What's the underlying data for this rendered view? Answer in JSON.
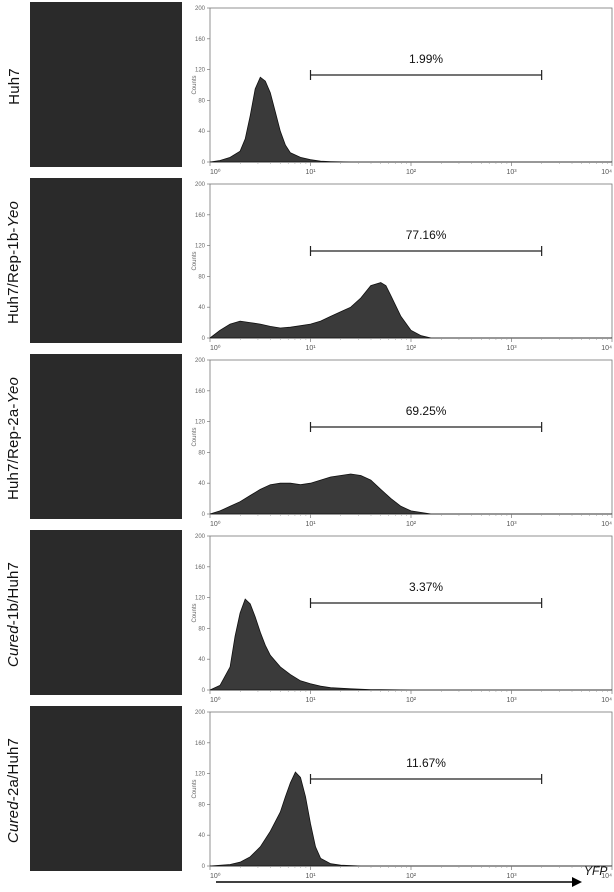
{
  "figure": {
    "x_axis_label": "YFP",
    "y_axis_label": "Counts",
    "x_tick_labels": [
      "10⁰",
      "10¹",
      "10²",
      "10³",
      "10⁴"
    ],
    "y_tick_labels": [
      "0",
      "40",
      "80",
      "120",
      "160",
      "200"
    ],
    "micro_color": "#2a2a2a",
    "fill_color": "#3a3a3a"
  },
  "chart_data": [
    {
      "type": "area",
      "label_text": "Huh7",
      "label_italic": "",
      "label_rest": "",
      "gate_percent": "1.99%",
      "gate_start_log": 1.0,
      "gate_end_log": 3.3,
      "xscale": "log",
      "xlim": [
        1,
        10000
      ],
      "ylim": [
        0,
        200
      ],
      "x_log": [
        0,
        0.1,
        0.2,
        0.3,
        0.35,
        0.4,
        0.45,
        0.5,
        0.55,
        0.6,
        0.65,
        0.7,
        0.75,
        0.8,
        0.9,
        1.0,
        1.1,
        1.2,
        1.4,
        2.0,
        4.0
      ],
      "y": [
        0,
        2,
        6,
        14,
        30,
        60,
        95,
        110,
        105,
        90,
        65,
        40,
        22,
        12,
        6,
        3,
        1,
        0.5,
        0,
        0,
        0
      ]
    },
    {
      "type": "area",
      "label_text": "Huh7/Rep-1b-",
      "label_italic": "Yeo",
      "label_rest": "",
      "gate_percent": "77.16%",
      "gate_start_log": 1.0,
      "gate_end_log": 3.3,
      "xscale": "log",
      "xlim": [
        1,
        10000
      ],
      "ylim": [
        0,
        200
      ],
      "x_log": [
        0,
        0.1,
        0.2,
        0.3,
        0.4,
        0.5,
        0.6,
        0.7,
        0.8,
        0.9,
        1.0,
        1.1,
        1.2,
        1.3,
        1.4,
        1.5,
        1.6,
        1.7,
        1.75,
        1.8,
        1.9,
        2.0,
        2.1,
        2.2,
        4.0
      ],
      "y": [
        0,
        10,
        18,
        22,
        20,
        18,
        15,
        13,
        14,
        16,
        18,
        22,
        28,
        34,
        40,
        52,
        68,
        72,
        68,
        55,
        28,
        10,
        3,
        0,
        0
      ]
    },
    {
      "type": "area",
      "label_text": "Huh7/Rep-2a-",
      "label_italic": "Yeo",
      "label_rest": "",
      "gate_percent": "69.25%",
      "gate_start_log": 1.0,
      "gate_end_log": 3.3,
      "xscale": "log",
      "xlim": [
        1,
        10000
      ],
      "ylim": [
        0,
        200
      ],
      "x_log": [
        0,
        0.1,
        0.2,
        0.3,
        0.4,
        0.5,
        0.6,
        0.7,
        0.8,
        0.9,
        1.0,
        1.1,
        1.2,
        1.3,
        1.4,
        1.5,
        1.6,
        1.7,
        1.8,
        1.9,
        2.0,
        2.2,
        4.0
      ],
      "y": [
        0,
        4,
        10,
        16,
        24,
        32,
        38,
        40,
        40,
        38,
        40,
        44,
        48,
        50,
        52,
        50,
        44,
        32,
        20,
        10,
        4,
        0,
        0
      ]
    },
    {
      "type": "area",
      "label_text": "",
      "label_italic": "Cured",
      "label_rest": "-1b/Huh7",
      "gate_percent": "3.37%",
      "gate_start_log": 1.0,
      "gate_end_log": 3.3,
      "xscale": "log",
      "xlim": [
        1,
        10000
      ],
      "ylim": [
        0,
        200
      ],
      "x_log": [
        0,
        0.1,
        0.2,
        0.25,
        0.3,
        0.35,
        0.4,
        0.45,
        0.5,
        0.55,
        0.6,
        0.7,
        0.8,
        0.9,
        1.0,
        1.1,
        1.2,
        1.4,
        1.6,
        2.0,
        4.0
      ],
      "y": [
        0,
        6,
        30,
        70,
        100,
        118,
        112,
        95,
        75,
        58,
        45,
        30,
        20,
        12,
        8,
        5,
        3,
        1.5,
        0.5,
        0,
        0
      ]
    },
    {
      "type": "area",
      "label_text": "",
      "label_italic": "Cured",
      "label_rest": "-2a/Huh7",
      "gate_percent": "11.67%",
      "gate_start_log": 1.0,
      "gate_end_log": 3.3,
      "xscale": "log",
      "xlim": [
        1,
        10000
      ],
      "ylim": [
        0,
        200
      ],
      "x_log": [
        0,
        0.2,
        0.3,
        0.4,
        0.5,
        0.6,
        0.7,
        0.75,
        0.8,
        0.85,
        0.9,
        0.95,
        1.0,
        1.05,
        1.1,
        1.2,
        1.3,
        1.5,
        2.0,
        4.0
      ],
      "y": [
        0,
        2,
        5,
        12,
        25,
        45,
        70,
        90,
        108,
        122,
        115,
        90,
        55,
        25,
        10,
        3,
        1,
        0,
        0,
        0
      ]
    }
  ]
}
